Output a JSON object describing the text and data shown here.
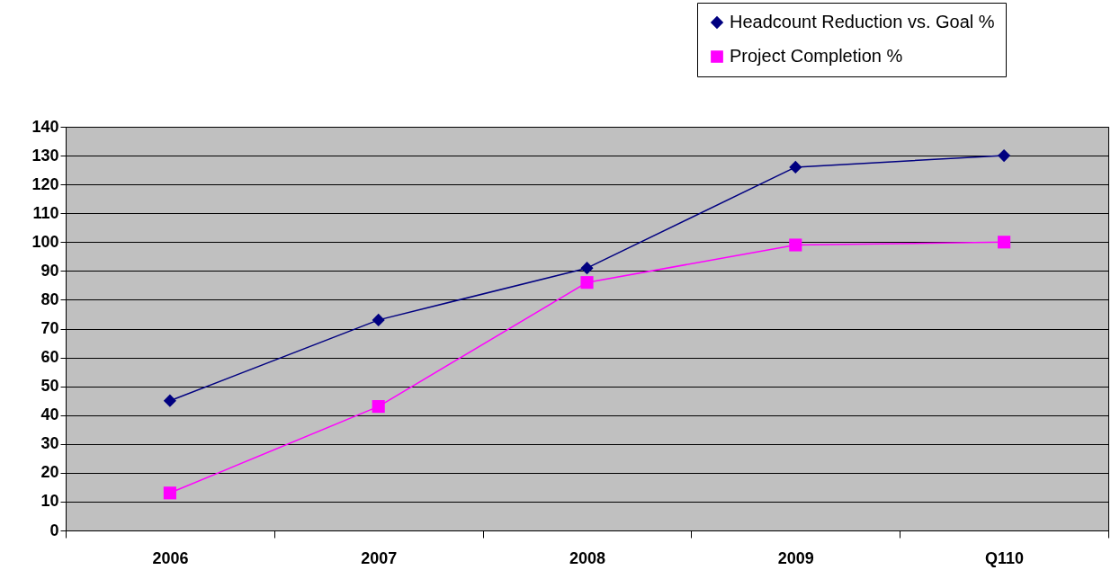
{
  "chart_data": {
    "type": "line",
    "categories": [
      "2006",
      "2007",
      "2008",
      "2009",
      "Q110"
    ],
    "series": [
      {
        "name": "Headcount Reduction vs. Goal %",
        "color": "#000080",
        "marker": "diamond",
        "values": [
          45,
          73,
          91,
          126,
          130
        ]
      },
      {
        "name": "Project Completion %",
        "color": "#ff00ff",
        "marker": "square",
        "values": [
          13,
          43,
          86,
          99,
          100
        ]
      }
    ],
    "ylim": [
      0,
      140
    ],
    "yticks": [
      0,
      10,
      20,
      30,
      40,
      50,
      60,
      70,
      80,
      90,
      100,
      110,
      120,
      130,
      140
    ],
    "grid": "y",
    "legend": "top right"
  }
}
